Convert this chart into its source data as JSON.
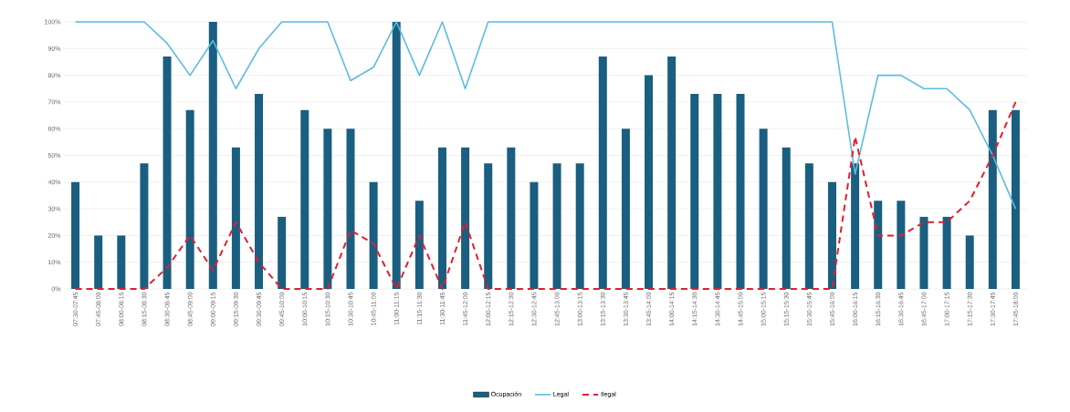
{
  "chart_data": {
    "type": "bar",
    "categories": [
      "07:30-07:45",
      "07:45-08:00",
      "08:00-08:15",
      "08:15-08:30",
      "08:30-08:45",
      "08:45-09:00",
      "09:00-09:15",
      "09:15-09:30",
      "09:30-09:45",
      "09:45-10:00",
      "10:00-10:15",
      "10:15-10:30",
      "10:30-10:45",
      "10:45-11:00",
      "11:00-11:15",
      "11:15-11:30",
      "11:30-11:45",
      "11:45-12:00",
      "12:00-12:15",
      "12:15-12:30",
      "12:30-12:45",
      "12:45-13:00",
      "13:00-13:15",
      "13:15-13:30",
      "13:30-13:45",
      "13:45-14:00",
      "14:00-14:15",
      "14:15-14:30",
      "14:30-14:45",
      "14:45-15:00",
      "15:00-15:15",
      "15:15-15:30",
      "15:30-15:45",
      "15:45-16:00",
      "16:00-16:15",
      "16:15-16:30",
      "16:30-16:45",
      "16:45-17:00",
      "17:00-17:15",
      "17:15-17:30",
      "17:30-17:45",
      "17:45-18:00"
    ],
    "series": [
      {
        "name": "Ocupación",
        "color": "#1a5e80",
        "values": [
          40,
          20,
          20,
          47,
          87,
          67,
          100,
          53,
          73,
          27,
          67,
          60,
          60,
          40,
          100,
          33,
          53,
          53,
          47,
          53,
          40,
          47,
          47,
          87,
          60,
          80,
          87,
          73,
          73,
          73,
          60,
          53,
          47,
          40,
          47,
          33,
          33,
          27,
          27,
          20,
          67,
          67
        ]
      },
      {
        "name": "Legal",
        "type": "line",
        "color": "#5bbcdf",
        "line_style": "solid",
        "values": [
          100,
          100,
          100,
          100,
          92,
          80,
          93,
          75,
          90,
          100,
          100,
          100,
          78,
          83,
          100,
          80,
          100,
          75,
          100,
          100,
          100,
          100,
          100,
          100,
          100,
          100,
          100,
          100,
          100,
          100,
          100,
          100,
          100,
          100,
          43,
          80,
          80,
          75,
          75,
          67,
          50,
          30
        ]
      },
      {
        "name": "Ilegal",
        "type": "line",
        "color": "#e0202f",
        "line_style": "dashed",
        "values": [
          0,
          0,
          0,
          0,
          8,
          20,
          7,
          25,
          10,
          0,
          0,
          0,
          22,
          17,
          0,
          20,
          0,
          25,
          0,
          0,
          0,
          0,
          0,
          0,
          0,
          0,
          0,
          0,
          0,
          0,
          0,
          0,
          0,
          0,
          57,
          20,
          20,
          25,
          25,
          33,
          50,
          70
        ]
      }
    ],
    "ylim": [
      0,
      100
    ],
    "yticks": [
      {
        "value": 0,
        "label": "0%"
      },
      {
        "value": 10,
        "label": "10%"
      },
      {
        "value": 20,
        "label": "20%"
      },
      {
        "value": 30,
        "label": "30%"
      },
      {
        "value": 40,
        "label": "40%"
      },
      {
        "value": 50,
        "label": "50%"
      },
      {
        "value": 60,
        "label": "60%"
      },
      {
        "value": 70,
        "label": "70%"
      },
      {
        "value": 80,
        "label": "80%"
      },
      {
        "value": 90,
        "label": "90%"
      },
      {
        "value": 100,
        "label": "100%"
      }
    ],
    "grid": "y",
    "legend": "bottom",
    "marker": "none"
  }
}
